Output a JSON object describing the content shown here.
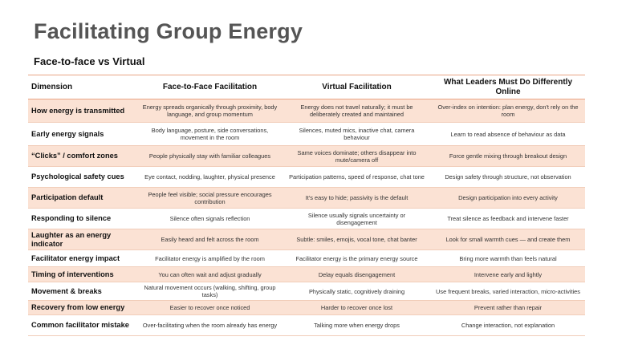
{
  "title": "Facilitating Group Energy",
  "subtitle": "Face-to-face vs Virtual",
  "table": {
    "headers": [
      "Dimension",
      "Face-to-Face Facilitation",
      "Virtual Facilitation",
      "What Leaders Must Do Differently Online"
    ],
    "rows": [
      [
        "How energy is transmitted",
        "Energy spreads organically through proximity, body language, and group momentum",
        "Energy does not travel naturally; it must be deliberately created and maintained",
        "Over-index on intention: plan energy, don't rely on the room"
      ],
      [
        "Early energy signals",
        "Body language, posture, side conversations, movement in the room",
        "Silences, muted mics, inactive chat, camera behaviour",
        "Learn to read absence of behaviour as data"
      ],
      [
        "“Clicks” / comfort zones",
        "People physically stay with familiar colleagues",
        "Same voices dominate; others disappear into mute/camera off",
        "Force gentle mixing through breakout design"
      ],
      [
        "Psychological safety cues",
        "Eye contact, nodding, laughter, physical presence",
        "Participation patterns, speed of response, chat tone",
        "Design safety through structure, not observation"
      ],
      [
        "Participation default",
        "People feel visible; social pressure encourages contribution",
        "It's easy to hide; passivity is the default",
        "Design participation into every activity"
      ],
      [
        "Responding to silence",
        "Silence often signals reflection",
        "Silence usually signals uncertainty or disengagement",
        "Treat silence as feedback and intervene faster"
      ],
      [
        "Laughter as an energy indicator",
        "Easily heard and felt across the room",
        "Subtle: smiles, emojis, vocal tone, chat banter",
        "Look for small warmth cues — and create them"
      ],
      [
        "Facilitator energy impact",
        "Facilitator energy is amplified by the room",
        "Facilitator energy is the primary energy source",
        "Bring more warmth than feels natural"
      ],
      [
        "Timing of interventions",
        "You can often wait and adjust gradually",
        "Delay equals disengagement",
        "Intervene early and lightly"
      ],
      [
        "Movement & breaks",
        "Natural movement occurs (walking, shifting, group tasks)",
        "Physically static, cognitively draining",
        "Use frequent breaks, varied interaction, micro-activities"
      ],
      [
        "Recovery from low energy",
        "Easier to recover once noticed",
        "Harder to recover once lost",
        "Prevent rather than repair"
      ],
      [
        "Common facilitator mistake",
        "Over-facilitating when the room already has energy",
        "Talking more when energy drops",
        "Change interaction, not explanation"
      ]
    ]
  }
}
